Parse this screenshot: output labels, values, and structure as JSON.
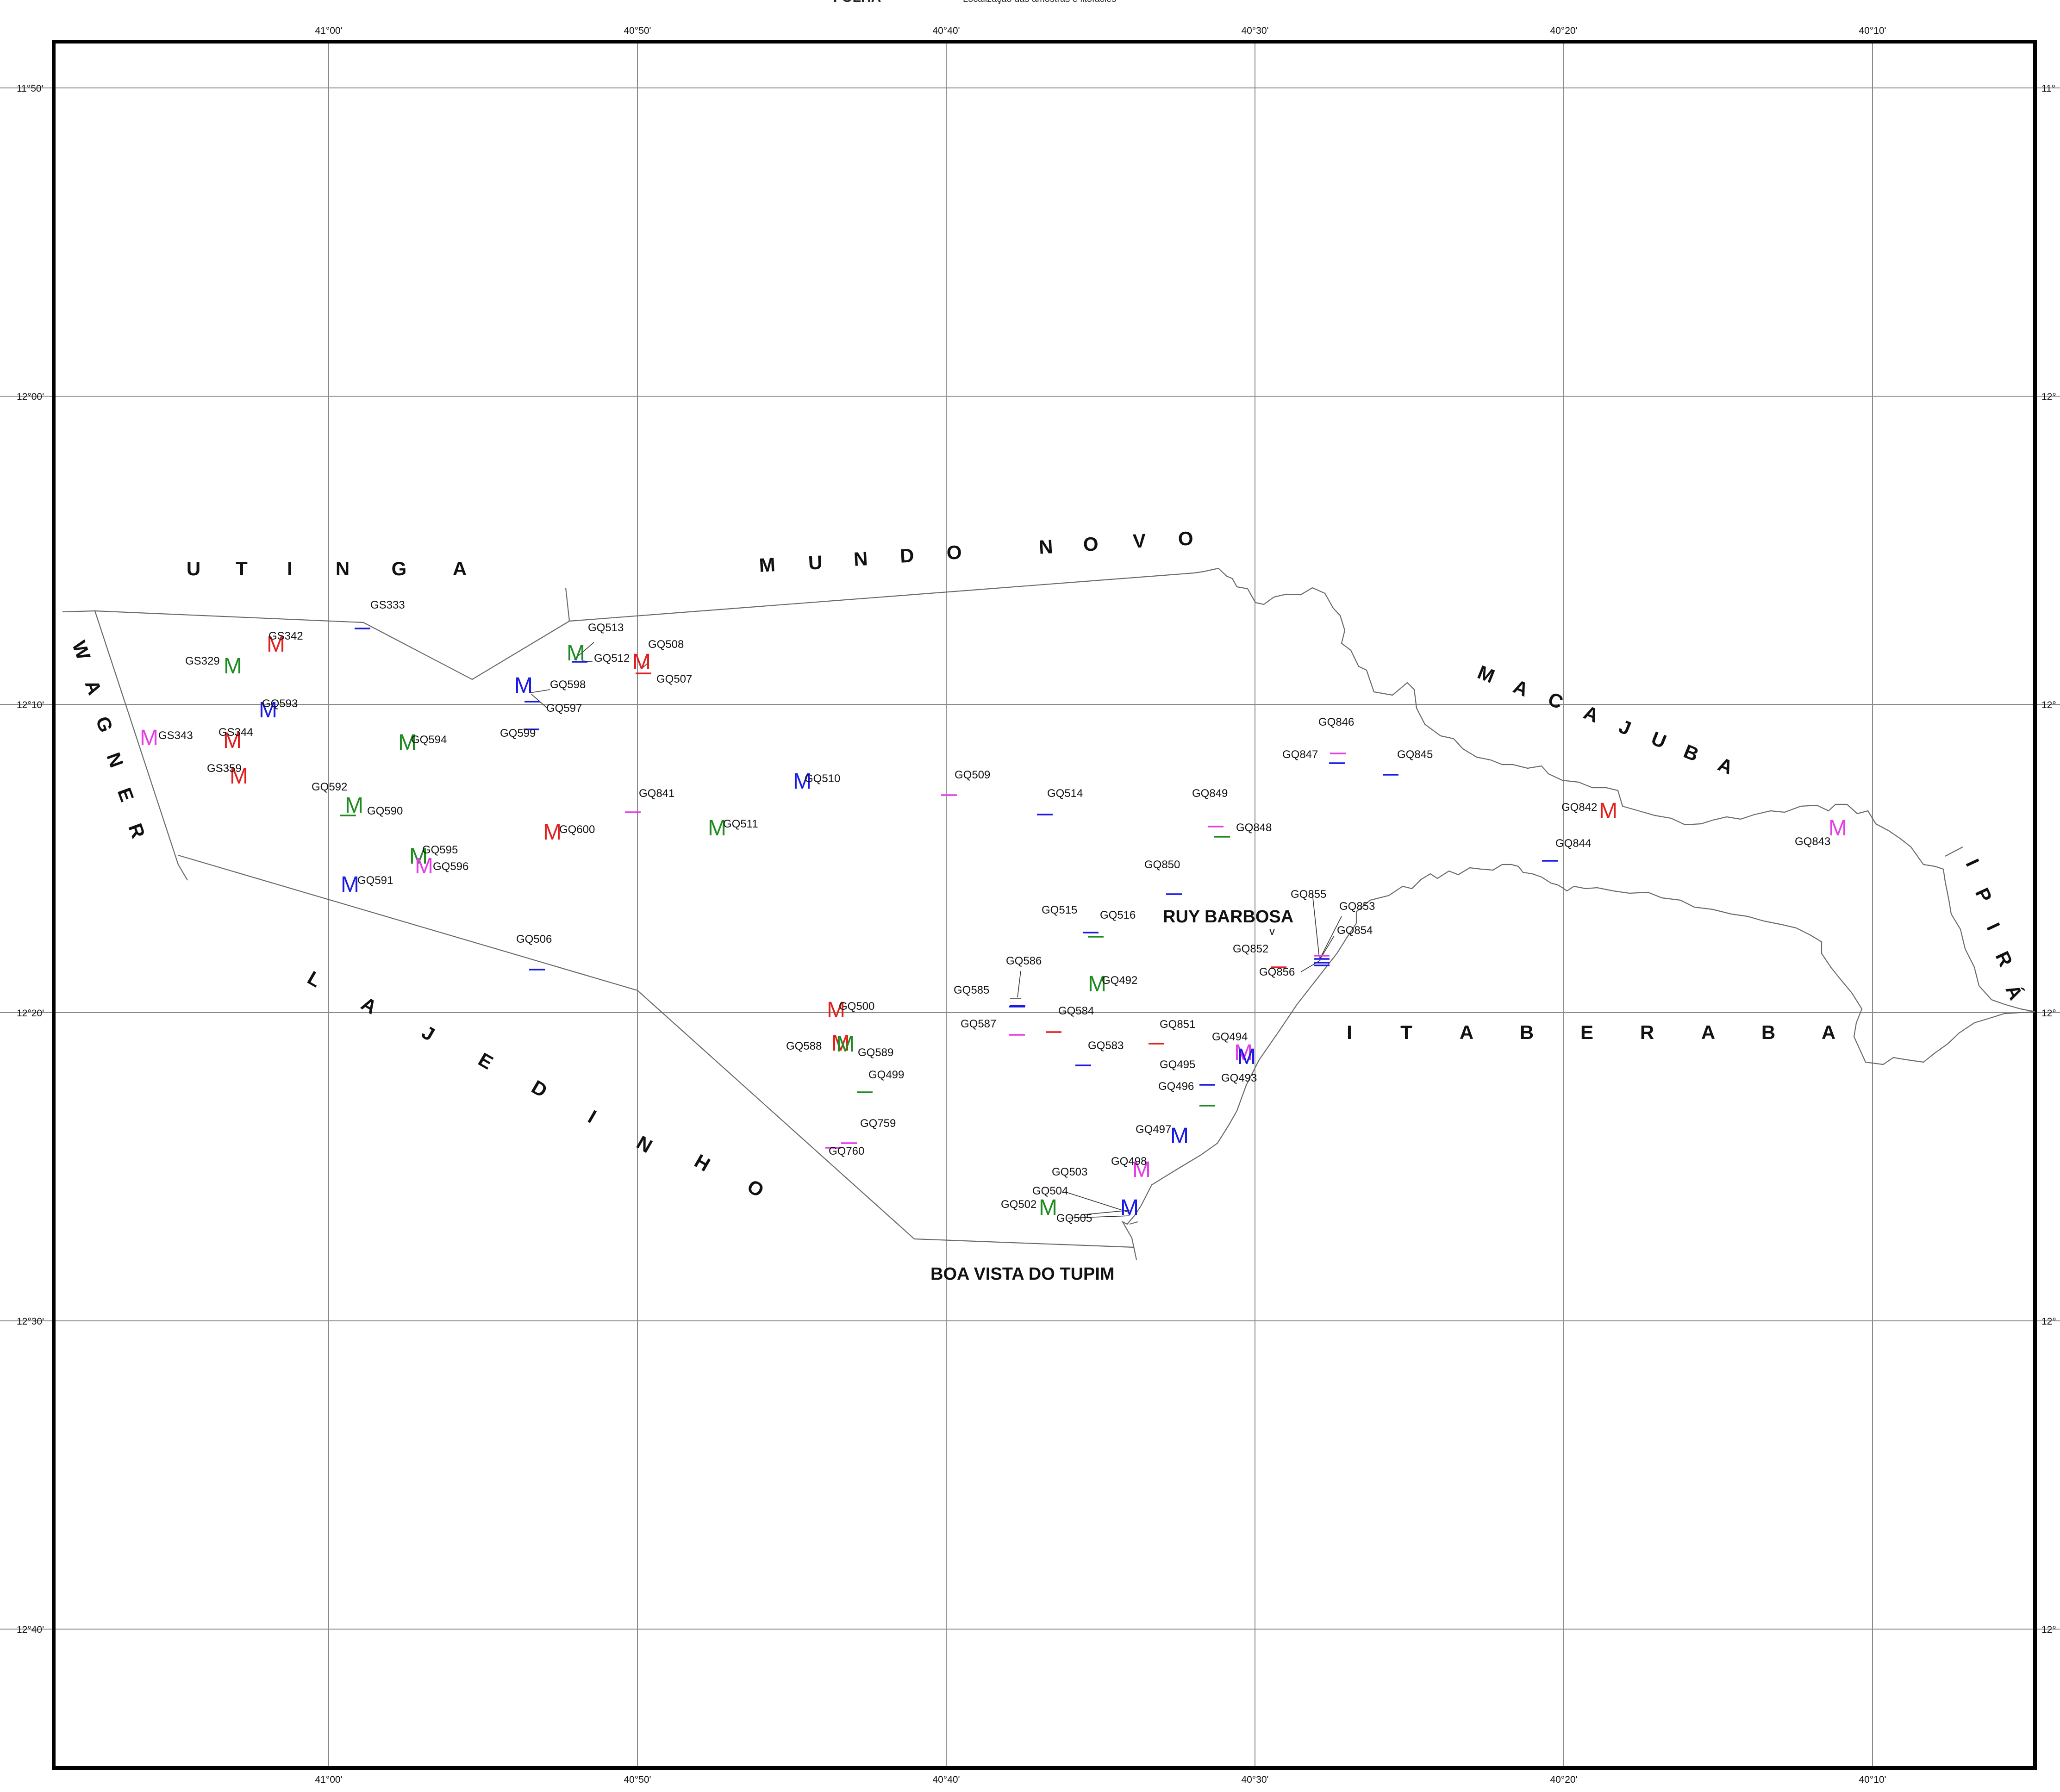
{
  "header": {
    "title": "FOLHA",
    "subtitle": "Localização das amostras e litofácies"
  },
  "map": {
    "lon_ticks": [
      "41°00'",
      "40°50'",
      "40°40'",
      "40°30'",
      "40°20'",
      "40°10'"
    ],
    "lat_ticks": [
      "11°50'",
      "12°00'",
      "12°10'",
      "12°20'",
      "12°30'",
      "12°40'"
    ],
    "lat_ticks_right": [
      "11°",
      "12°",
      "12°",
      "12°",
      "12°",
      "12°"
    ],
    "colors": {
      "red": "#e0201e",
      "green": "#1f8a1f",
      "blue": "#1a1ae6",
      "magenta": "#e63ce6",
      "frame": "#000000",
      "grid": "#8a8a8a",
      "boundary": "#6a6a6a"
    }
  },
  "regions": {
    "utinga": [
      "U",
      "T",
      "I",
      "N",
      "G",
      "A"
    ],
    "mundo_novo": [
      "M",
      "U",
      "N",
      "D",
      "O",
      "N",
      "O",
      "V",
      "O"
    ],
    "macajuba": [
      "M",
      "A",
      "C",
      "A",
      "J",
      "U",
      "B",
      "A"
    ],
    "wagner": [
      "W",
      "A",
      "G",
      "N",
      "E",
      "R"
    ],
    "lajedinho": [
      "L",
      "A",
      "J",
      "E",
      "D",
      "I",
      "N",
      "H",
      "O"
    ],
    "itaberaba": [
      "I",
      "T",
      "A",
      "B",
      "E",
      "R",
      "A",
      "B",
      "A"
    ],
    "ipira": [
      "I",
      "P",
      "I",
      "R",
      "Á"
    ]
  },
  "towns": {
    "ruy_barbosa": "RUY BARBOSA",
    "boa_vista": "BOA VISTA DO TUPIM"
  },
  "stations": {
    "markers": [
      {
        "id": "GS329",
        "sym": "M",
        "color": "green"
      },
      {
        "id": "GS342",
        "sym": "M",
        "color": "red"
      },
      {
        "id": "GS343",
        "sym": "M",
        "color": "magenta"
      },
      {
        "id": "GS344",
        "sym": "M",
        "color": "red"
      },
      {
        "id": "GS359",
        "sym": "M",
        "color": "red"
      },
      {
        "id": "GQ593",
        "sym": "M",
        "color": "blue"
      },
      {
        "id": "GQ592",
        "sym": "M",
        "color": "green"
      },
      {
        "id": "GQ594",
        "sym": "M",
        "color": "green"
      },
      {
        "id": "GQ591",
        "sym": "M",
        "color": "blue"
      },
      {
        "id": "GQ595",
        "sym": "M",
        "color": "green"
      },
      {
        "id": "GQ596",
        "sym": "M",
        "color": "magenta"
      },
      {
        "id": "GQ598",
        "sym": "M",
        "color": "blue"
      },
      {
        "id": "GQ513",
        "sym": "M",
        "color": "green"
      },
      {
        "id": "GQ508",
        "sym": "M",
        "color": "red"
      },
      {
        "id": "GQ600",
        "sym": "M",
        "color": "red"
      },
      {
        "id": "GQ511",
        "sym": "M",
        "color": "green"
      },
      {
        "id": "GQ510",
        "sym": "M",
        "color": "blue"
      },
      {
        "id": "GQ500",
        "sym": "M",
        "color": "red"
      },
      {
        "id": "GQ588",
        "sym": "M",
        "color": "red"
      },
      {
        "id": "GQ589",
        "sym": "M",
        "color": "green"
      },
      {
        "id": "GQ492",
        "sym": "M",
        "color": "green"
      },
      {
        "id": "GQ494",
        "sym": "M",
        "color": "magenta"
      },
      {
        "id": "GQ493",
        "sym": "M",
        "color": "blue"
      },
      {
        "id": "GQ497",
        "sym": "M",
        "color": "blue"
      },
      {
        "id": "GQ498",
        "sym": "M",
        "color": "magenta"
      },
      {
        "id": "GQ502",
        "sym": "M",
        "color": "green"
      },
      {
        "id": "GQ505",
        "sym": "M",
        "color": "blue"
      },
      {
        "id": "GQ842",
        "sym": "M",
        "color": "red"
      },
      {
        "id": "GQ843",
        "sym": "M",
        "color": "magenta"
      }
    ],
    "dashes": [
      {
        "id": "GS333",
        "color": "blue"
      },
      {
        "id": "GQ597",
        "color": "blue"
      },
      {
        "id": "GQ599",
        "color": "blue"
      },
      {
        "id": "GQ590",
        "color": "green"
      },
      {
        "id": "GQ512",
        "color": "blue"
      },
      {
        "id": "GQ507",
        "color": "red"
      },
      {
        "id": "GQ506",
        "color": "blue"
      },
      {
        "id": "GQ841",
        "color": "magenta"
      },
      {
        "id": "GQ509",
        "color": "magenta"
      },
      {
        "id": "GQ514",
        "color": "blue"
      },
      {
        "id": "GQ515",
        "color": "blue"
      },
      {
        "id": "GQ516",
        "color": "green"
      },
      {
        "id": "GQ586",
        "color": "blue"
      },
      {
        "id": "GQ585",
        "color": "blue"
      },
      {
        "id": "GQ587",
        "color": "magenta"
      },
      {
        "id": "GQ584",
        "color": "red"
      },
      {
        "id": "GQ583",
        "color": "blue"
      },
      {
        "id": "GQ499",
        "color": "green"
      },
      {
        "id": "GQ759",
        "color": "magenta"
      },
      {
        "id": "GQ760",
        "color": "magenta"
      },
      {
        "id": "GQ849",
        "color": "magenta"
      },
      {
        "id": "GQ848",
        "color": "green"
      },
      {
        "id": "GQ850",
        "color": "blue"
      },
      {
        "id": "GQ851",
        "color": "red"
      },
      {
        "id": "GQ495",
        "color": "blue"
      },
      {
        "id": "GQ496",
        "color": "green"
      },
      {
        "id": "GQ846",
        "color": "magenta"
      },
      {
        "id": "GQ847",
        "color": "blue"
      },
      {
        "id": "GQ845",
        "color": "blue"
      },
      {
        "id": "GQ844",
        "color": "blue"
      },
      {
        "id": "GQ852",
        "color": "red"
      },
      {
        "id": "GQ853",
        "color": "magenta"
      },
      {
        "id": "GQ854",
        "color": "blue"
      },
      {
        "id": "GQ855",
        "color": "blue"
      },
      {
        "id": "GQ856",
        "color": "blue"
      }
    ],
    "labels_only": [
      "GQ503",
      "GQ504"
    ]
  }
}
